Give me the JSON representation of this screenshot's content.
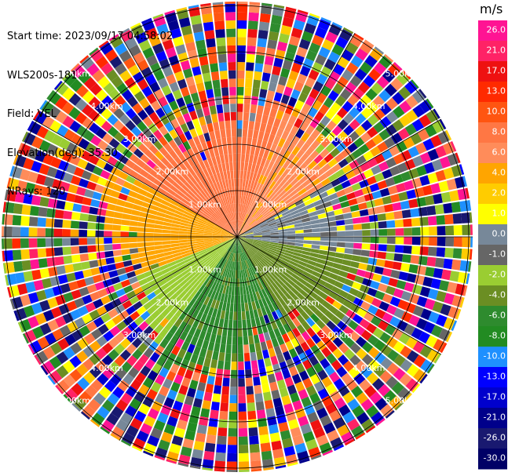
{
  "header": {
    "start_time": "Start time: 2023/09/17 04:58:02",
    "instrument": "WLS200s-181",
    "field": "Field: VEL",
    "elevation": "Elevation(deg): 35.30",
    "nrays": "NRays: 120"
  },
  "chart_data": {
    "type": "heatmap",
    "subtype": "polar-ppi",
    "field": "VEL",
    "units": "m/s",
    "n_rays": 120,
    "elevation_deg": 35.3,
    "range_rings_km": [
      1.0,
      2.0,
      3.0,
      4.0,
      5.0
    ],
    "ring_labels": [
      "1.00km",
      "2.00km",
      "3.00km",
      "4.00km",
      "5.00km"
    ],
    "coherent_region": {
      "description_ranges_km": [
        0,
        2.6
      ],
      "dominant_values": [
        {
          "sector": "north-west",
          "value": 8.0
        },
        {
          "sector": "north",
          "value": 6.0
        },
        {
          "sector": "west",
          "value": 3.0
        },
        {
          "sector": "east",
          "value": -0.5
        },
        {
          "sector": "south-east",
          "value": -5.0
        },
        {
          "sector": "south",
          "value": -6.0
        },
        {
          "sector": "south-west",
          "value": -3.0
        }
      ]
    },
    "noise_beyond_km": 2.6,
    "colorbar": {
      "label": "m/s",
      "ticks": [
        "26.0",
        "21.0",
        "17.0",
        "13.0",
        "10.0",
        "8.0",
        "6.0",
        "4.0",
        "2.0",
        "1.0",
        "0.0",
        "-1.0",
        "-2.0",
        "-4.0",
        "-6.0",
        "-8.0",
        "-10.0",
        "-13.0",
        "-17.0",
        "-21.0",
        "-26.0",
        "-30.0"
      ],
      "colors": [
        "#ff1493",
        "#ff2266",
        "#ee1111",
        "#ff2a00",
        "#ff5511",
        "#ff7744",
        "#ff8c5a",
        "#ffa500",
        "#ffcc00",
        "#ffff00",
        "#778899",
        "#666666",
        "#9acd32",
        "#6b8e23",
        "#2e8b2e",
        "#228b22",
        "#1e90ff",
        "#0000ff",
        "#0000cd",
        "#00008b",
        "#191970",
        "#000066"
      ]
    }
  }
}
